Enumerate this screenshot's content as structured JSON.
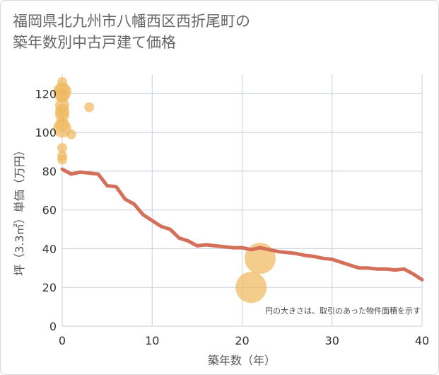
{
  "chart_data": {
    "type": "scatter",
    "title_line1": "福岡県北九州市八幡西区西折尾町の",
    "title_line2": "築年数別中古戸建て価格",
    "xlabel": "築年数（年）",
    "ylabel": "坪（3.3㎡）単価（万円）",
    "xlim": [
      0,
      40
    ],
    "ylim": [
      0,
      130
    ],
    "xticks": [
      0,
      10,
      20,
      30,
      40
    ],
    "yticks": [
      0,
      20,
      40,
      60,
      80,
      100,
      120
    ],
    "grid": true,
    "note": "円の大きさは、取引のあった物件面積を示す",
    "colors": {
      "bubble": "#f0b860",
      "line": "#d4705a",
      "grid": "#c8d0dc"
    },
    "scatter": [
      {
        "x": 0,
        "y": 126,
        "size": 1
      },
      {
        "x": 0,
        "y": 122,
        "size": 2
      },
      {
        "x": 0,
        "y": 121,
        "size": 3
      },
      {
        "x": 0,
        "y": 119,
        "size": 2
      },
      {
        "x": 0,
        "y": 114,
        "size": 2
      },
      {
        "x": 0,
        "y": 111,
        "size": 2
      },
      {
        "x": 0,
        "y": 109,
        "size": 2
      },
      {
        "x": 0,
        "y": 104,
        "size": 2
      },
      {
        "x": 0,
        "y": 102,
        "size": 3
      },
      {
        "x": 0,
        "y": 92,
        "size": 1
      },
      {
        "x": 0,
        "y": 88,
        "size": 1
      },
      {
        "x": 0,
        "y": 86,
        "size": 1
      },
      {
        "x": 1,
        "y": 99,
        "size": 1
      },
      {
        "x": 3,
        "y": 113,
        "size": 1
      },
      {
        "x": 21,
        "y": 20,
        "size": 6
      },
      {
        "x": 22,
        "y": 35,
        "size": 6
      }
    ],
    "line": {
      "x": [
        0,
        1,
        2,
        3,
        4,
        5,
        6,
        7,
        8,
        9,
        10,
        11,
        12,
        13,
        14,
        15,
        16,
        17,
        18,
        19,
        20,
        21,
        22,
        23,
        24,
        25,
        26,
        27,
        28,
        29,
        30,
        31,
        32,
        33,
        34,
        35,
        36,
        37,
        38,
        39,
        40
      ],
      "y": [
        81,
        78.5,
        79.5,
        79,
        78.5,
        72.5,
        72,
        65.5,
        63,
        57.5,
        54.5,
        51.5,
        50,
        45.5,
        44,
        41.5,
        42,
        41.5,
        41,
        40.5,
        40.5,
        39.5,
        40.5,
        39.5,
        38.5,
        38,
        37.5,
        36.5,
        36,
        35,
        34.5,
        33,
        31.5,
        30,
        30,
        29.5,
        29.5,
        29,
        29.5,
        27,
        24
      ]
    }
  }
}
